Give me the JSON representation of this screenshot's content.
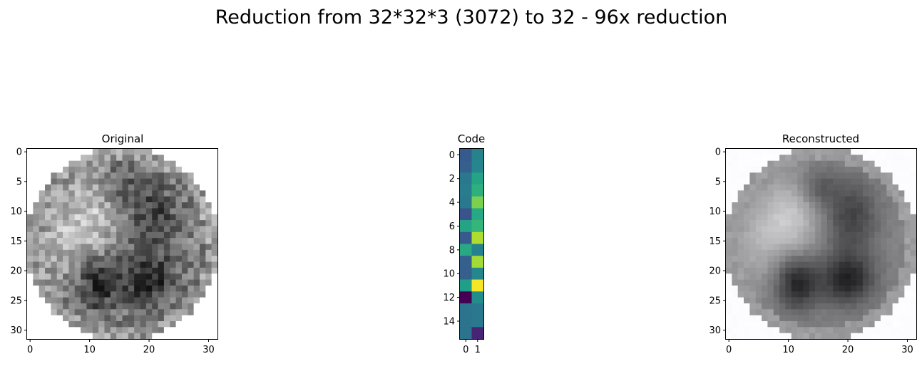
{
  "figure": {
    "suptitle": "Reduction from 32*32*3 (3072) to 32 - 96x reduction"
  },
  "chart_data": [
    {
      "type": "heatmap",
      "title": "Original",
      "colormap": "gray",
      "shape": [
        32,
        32
      ],
      "xticks": [
        "0",
        "10",
        "20",
        "30"
      ],
      "yticks": [
        "0",
        "5",
        "10",
        "15",
        "20",
        "25",
        "30"
      ],
      "content": "grayscale circular histology image (pixel values not individually readable)"
    },
    {
      "type": "heatmap",
      "title": "Code",
      "colormap": "viridis",
      "shape": [
        16,
        2
      ],
      "xticks": [
        "0",
        "1"
      ],
      "yticks": [
        "0",
        "2",
        "4",
        "6",
        "8",
        "10",
        "12",
        "14"
      ],
      "values": [
        [
          0.28,
          0.45
        ],
        [
          0.3,
          0.46
        ],
        [
          0.4,
          0.58
        ],
        [
          0.42,
          0.63
        ],
        [
          0.4,
          0.8
        ],
        [
          0.26,
          0.6
        ],
        [
          0.58,
          0.66
        ],
        [
          0.28,
          0.88
        ],
        [
          0.6,
          0.44
        ],
        [
          0.3,
          0.86
        ],
        [
          0.3,
          0.46
        ],
        [
          0.56,
          0.99
        ],
        [
          0.0,
          0.49
        ],
        [
          0.38,
          0.4
        ],
        [
          0.38,
          0.4
        ],
        [
          0.38,
          0.1
        ]
      ]
    },
    {
      "type": "heatmap",
      "title": "Reconstructed",
      "colormap": "gray",
      "shape": [
        32,
        32
      ],
      "xticks": [
        "0",
        "10",
        "20",
        "30"
      ],
      "yticks": [
        "0",
        "5",
        "10",
        "15",
        "20",
        "25",
        "30"
      ],
      "content": "blurred grayscale reconstruction of the original image (pixel values not individually readable)"
    }
  ]
}
